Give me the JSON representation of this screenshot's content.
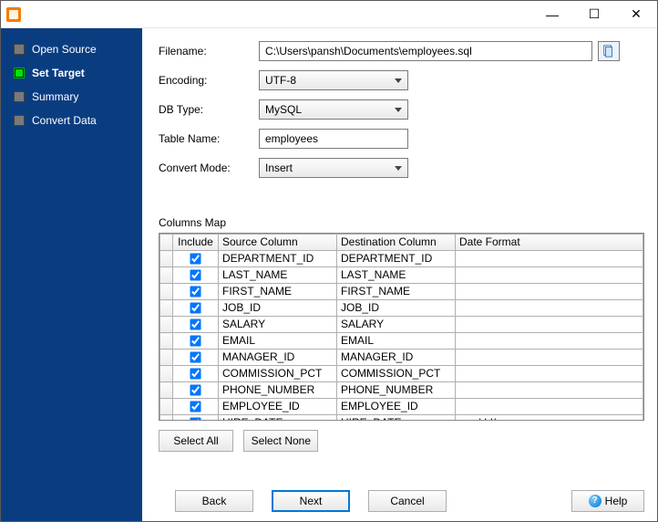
{
  "titlebar": {
    "minimize_glyph": "—",
    "maximize_glyph": "☐",
    "close_glyph": "✕"
  },
  "sidebar": {
    "steps": [
      {
        "label": "Open Source",
        "active": false
      },
      {
        "label": "Set Target",
        "active": true
      },
      {
        "label": "Summary",
        "active": false
      },
      {
        "label": "Convert Data",
        "active": false
      }
    ]
  },
  "form": {
    "filename_label": "Filename:",
    "filename_value": "C:\\Users\\pansh\\Documents\\employees.sql",
    "encoding_label": "Encoding:",
    "encoding_value": "UTF-8",
    "dbtype_label": "DB Type:",
    "dbtype_value": "MySQL",
    "tablename_label": "Table Name:",
    "tablename_value": "employees",
    "mode_label": "Convert Mode:",
    "mode_value": "Insert"
  },
  "columns_map": {
    "section_label": "Columns Map",
    "headers": {
      "include": "Include",
      "source": "Source Column",
      "destination": "Destination Column",
      "dateformat": "Date Format"
    },
    "rows": [
      {
        "include": true,
        "source": "DEPARTMENT_ID",
        "destination": "DEPARTMENT_ID",
        "dateformat": ""
      },
      {
        "include": true,
        "source": "LAST_NAME",
        "destination": "LAST_NAME",
        "dateformat": ""
      },
      {
        "include": true,
        "source": "FIRST_NAME",
        "destination": "FIRST_NAME",
        "dateformat": ""
      },
      {
        "include": true,
        "source": "JOB_ID",
        "destination": "JOB_ID",
        "dateformat": ""
      },
      {
        "include": true,
        "source": "SALARY",
        "destination": "SALARY",
        "dateformat": ""
      },
      {
        "include": true,
        "source": "EMAIL",
        "destination": "EMAIL",
        "dateformat": ""
      },
      {
        "include": true,
        "source": "MANAGER_ID",
        "destination": "MANAGER_ID",
        "dateformat": ""
      },
      {
        "include": true,
        "source": "COMMISSION_PCT",
        "destination": "COMMISSION_PCT",
        "dateformat": ""
      },
      {
        "include": true,
        "source": "PHONE_NUMBER",
        "destination": "PHONE_NUMBER",
        "dateformat": ""
      },
      {
        "include": true,
        "source": "EMPLOYEE_ID",
        "destination": "EMPLOYEE_ID",
        "dateformat": ""
      },
      {
        "include": true,
        "source": "HIRE_DATE",
        "destination": "HIRE_DATE",
        "dateformat": "mm/dd/yyyy"
      }
    ]
  },
  "buttons": {
    "select_all": "Select All",
    "select_none": "Select None",
    "back": "Back",
    "next": "Next",
    "cancel": "Cancel",
    "help": "Help"
  },
  "colors": {
    "sidebar_bg": "#0a3d80",
    "active_step": "#00e300",
    "button_border_default": "#0078d7"
  }
}
